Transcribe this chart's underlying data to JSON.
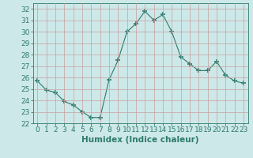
{
  "x": [
    0,
    1,
    2,
    3,
    4,
    5,
    6,
    7,
    8,
    9,
    10,
    11,
    12,
    13,
    14,
    15,
    16,
    17,
    18,
    19,
    20,
    21,
    22,
    23
  ],
  "y": [
    25.7,
    24.9,
    24.7,
    23.9,
    23.6,
    23.0,
    22.5,
    22.5,
    25.8,
    27.5,
    30.0,
    30.7,
    31.8,
    31.0,
    31.5,
    30.0,
    27.8,
    27.2,
    26.6,
    26.6,
    27.4,
    26.2,
    25.7,
    25.5
  ],
  "line_color": "#2d7a6e",
  "marker": "+",
  "marker_size": 4,
  "marker_lw": 1.2,
  "bg_color": "#cde8e8",
  "grid_color": "#b8d8d8",
  "xlabel": "Humidex (Indice chaleur)",
  "ylim": [
    22,
    32.5
  ],
  "yticks": [
    22,
    23,
    24,
    25,
    26,
    27,
    28,
    29,
    30,
    31,
    32
  ],
  "xticks": [
    0,
    1,
    2,
    3,
    4,
    5,
    6,
    7,
    8,
    9,
    10,
    11,
    12,
    13,
    14,
    15,
    16,
    17,
    18,
    19,
    20,
    21,
    22,
    23
  ],
  "axis_fontsize": 6.5,
  "label_fontsize": 7.5
}
